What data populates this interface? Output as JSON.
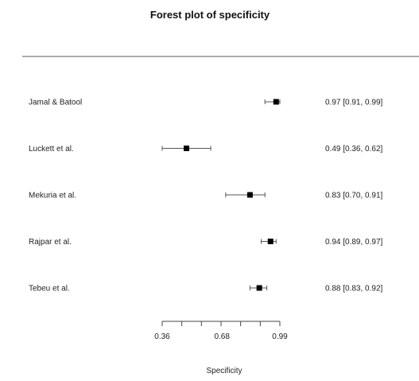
{
  "chart_data": {
    "type": "forest",
    "title": "Forest plot of specificity",
    "xlabel": "Specificity",
    "xlim": [
      0.36,
      0.99
    ],
    "xticks": [
      "0.36",
      "0.68",
      "0.99"
    ],
    "studies": [
      {
        "label": "Jamal & Batool",
        "estimate": 0.97,
        "lower": 0.91,
        "upper": 0.99,
        "ci_text": "0.97 [0.91, 0.99]"
      },
      {
        "label": "Luckett et al.",
        "estimate": 0.49,
        "lower": 0.36,
        "upper": 0.62,
        "ci_text": "0.49 [0.36, 0.62]"
      },
      {
        "label": "Mekuria et al.",
        "estimate": 0.83,
        "lower": 0.7,
        "upper": 0.91,
        "ci_text": "0.83 [0.70, 0.91]"
      },
      {
        "label": "Rajpar et al.",
        "estimate": 0.94,
        "lower": 0.89,
        "upper": 0.97,
        "ci_text": "0.94 [0.89, 0.97]"
      },
      {
        "label": "Tebeu et al.",
        "estimate": 0.88,
        "lower": 0.83,
        "upper": 0.92,
        "ci_text": "0.88 [0.83, 0.92]"
      }
    ],
    "colors": {
      "marker": "#000000",
      "ci_line": "#555555",
      "rule": "#555555",
      "text": "#222222"
    }
  }
}
